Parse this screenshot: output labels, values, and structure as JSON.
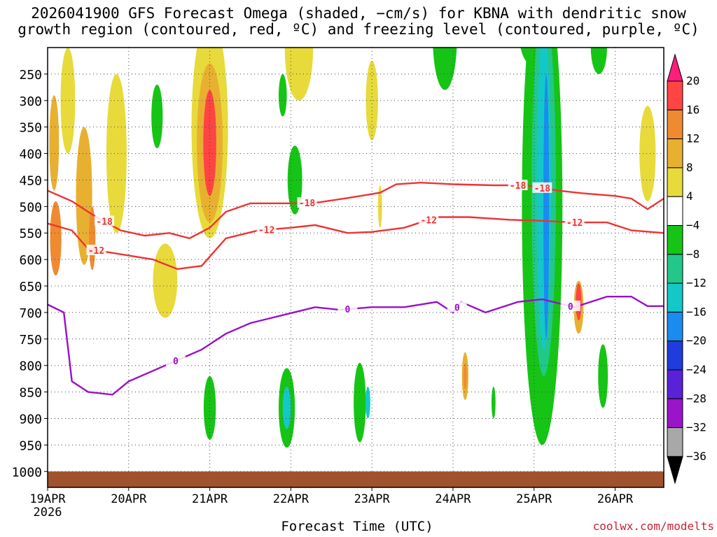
{
  "title_line1": "2026041900 GFS Forecast Omega (shaded, −cm/s) for KBNA with dendritic snow",
  "title_line2": "growth region (contoured, red, ºC) and freezing level (contoured, purple, ºC)",
  "xlabel": "Forecast Time (UTC)",
  "credit": "coolwx.com/modelts",
  "chart_data": {
    "type": "heatmap",
    "x_ticks": [
      "19APR",
      "20APR",
      "21APR",
      "22APR",
      "23APR",
      "24APR",
      "25APR",
      "26APR"
    ],
    "x_year_label": "2026",
    "x_range_days": [
      0,
      7.6
    ],
    "y_ticks": [
      250,
      300,
      350,
      400,
      450,
      500,
      550,
      600,
      650,
      700,
      750,
      800,
      850,
      900,
      950,
      1000
    ],
    "y_range_hpa": [
      200,
      1030
    ],
    "grid": true,
    "ground_level_hpa": 1000,
    "ground_color": "#a0522d",
    "colorbar": {
      "labels": [
        "20",
        "16",
        "12",
        "8",
        "4",
        "−4",
        "−8",
        "−12",
        "−16",
        "−20",
        "−24",
        "−28",
        "−32",
        "−36"
      ],
      "colors": [
        "#ff1f7a",
        "#ff4444",
        "#f08a30",
        "#e8b030",
        "#e8da3a",
        "#ffffff",
        "#16c416",
        "#22c88a",
        "#14c8c8",
        "#1a8cf0",
        "#1f3cdc",
        "#5a22d8",
        "#9a14c8",
        "#a8a8a8",
        "#000000"
      ]
    },
    "omega_cells": [
      {
        "day": 0.08,
        "p": 380,
        "w": 0.12,
        "h": 180,
        "v": 8
      },
      {
        "day": 0.1,
        "p": 560,
        "w": 0.14,
        "h": 140,
        "v": 12
      },
      {
        "day": 0.25,
        "p": 300,
        "w": 0.18,
        "h": 200,
        "v": 4
      },
      {
        "day": 0.45,
        "p": 480,
        "w": 0.2,
        "h": 260,
        "v": 8
      },
      {
        "day": 0.55,
        "p": 560,
        "w": 0.08,
        "h": 120,
        "v": 12
      },
      {
        "day": 0.85,
        "p": 400,
        "w": 0.25,
        "h": 300,
        "v": 4
      },
      {
        "day": 1.35,
        "p": 330,
        "w": 0.14,
        "h": 120,
        "v": -8
      },
      {
        "day": 1.45,
        "p": 640,
        "w": 0.3,
        "h": 140,
        "v": 4
      },
      {
        "day": 2.0,
        "p": 350,
        "w": 0.45,
        "h": 420,
        "v": 4
      },
      {
        "day": 2.0,
        "p": 380,
        "w": 0.32,
        "h": 300,
        "v": 8
      },
      {
        "day": 2.0,
        "p": 380,
        "w": 0.16,
        "h": 200,
        "v": 16
      },
      {
        "day": 2.0,
        "p": 880,
        "w": 0.15,
        "h": 120,
        "v": -8
      },
      {
        "day": 2.9,
        "p": 290,
        "w": 0.1,
        "h": 80,
        "v": -8
      },
      {
        "day": 3.05,
        "p": 450,
        "w": 0.18,
        "h": 130,
        "v": -8
      },
      {
        "day": 2.95,
        "p": 880,
        "w": 0.2,
        "h": 150,
        "v": -8
      },
      {
        "day": 2.95,
        "p": 880,
        "w": 0.1,
        "h": 80,
        "v": -16
      },
      {
        "day": 3.1,
        "p": 200,
        "w": 0.35,
        "h": 200,
        "v": 4
      },
      {
        "day": 4.0,
        "p": 300,
        "w": 0.15,
        "h": 150,
        "v": 4
      },
      {
        "day": 3.85,
        "p": 870,
        "w": 0.15,
        "h": 150,
        "v": -8
      },
      {
        "day": 3.95,
        "p": 870,
        "w": 0.06,
        "h": 60,
        "v": -16
      },
      {
        "day": 4.1,
        "p": 500,
        "w": 0.05,
        "h": 80,
        "v": 4
      },
      {
        "day": 5.15,
        "p": 820,
        "w": 0.08,
        "h": 90,
        "v": 8
      },
      {
        "day": 5.15,
        "p": 820,
        "w": 0.04,
        "h": 50,
        "v": 12
      },
      {
        "day": 4.9,
        "p": 180,
        "w": 0.3,
        "h": 200,
        "v": -8
      },
      {
        "day": 5.5,
        "p": 870,
        "w": 0.05,
        "h": 60,
        "v": -8
      },
      {
        "day": 5.95,
        "p": 150,
        "w": 0.3,
        "h": 160,
        "v": -8
      },
      {
        "day": 6.1,
        "p": 500,
        "w": 0.5,
        "h": 900,
        "v": -8
      },
      {
        "day": 6.12,
        "p": 470,
        "w": 0.3,
        "h": 700,
        "v": -12
      },
      {
        "day": 6.12,
        "p": 470,
        "w": 0.18,
        "h": 600,
        "v": -16
      },
      {
        "day": 6.15,
        "p": 500,
        "w": 0.07,
        "h": 500,
        "v": -20
      },
      {
        "day": 6.55,
        "p": 690,
        "w": 0.12,
        "h": 100,
        "v": 8
      },
      {
        "day": 6.55,
        "p": 680,
        "w": 0.07,
        "h": 70,
        "v": 16
      },
      {
        "day": 6.8,
        "p": 200,
        "w": 0.2,
        "h": 100,
        "v": -8
      },
      {
        "day": 6.85,
        "p": 820,
        "w": 0.12,
        "h": 120,
        "v": -8
      },
      {
        "day": 7.4,
        "p": 400,
        "w": 0.2,
        "h": 180,
        "v": 4
      }
    ],
    "contours": [
      {
        "name": "-18",
        "color": "#ee3333",
        "label": "-18",
        "points": [
          [
            0,
            470
          ],
          [
            0.3,
            490
          ],
          [
            0.55,
            515
          ],
          [
            0.9,
            545
          ],
          [
            1.2,
            555
          ],
          [
            1.5,
            550
          ],
          [
            1.75,
            560
          ],
          [
            2.0,
            540
          ],
          [
            2.2,
            510
          ],
          [
            2.5,
            494
          ],
          [
            3.0,
            494
          ],
          [
            3.35,
            492
          ],
          [
            3.7,
            484
          ],
          [
            4.1,
            474
          ],
          [
            4.3,
            458
          ],
          [
            4.6,
            455
          ],
          [
            5.0,
            458
          ],
          [
            5.5,
            460
          ],
          [
            5.9,
            460
          ],
          [
            6.3,
            470
          ],
          [
            6.6,
            475
          ],
          [
            7.0,
            480
          ],
          [
            7.2,
            485
          ],
          [
            7.4,
            505
          ],
          [
            7.6,
            485
          ]
        ],
        "label_day": [
          3.2,
          0.7,
          5.8,
          6.1
        ]
      },
      {
        "name": "-12",
        "color": "#ee3333",
        "label": "-12",
        "points": [
          [
            0,
            532
          ],
          [
            0.3,
            545
          ],
          [
            0.5,
            580
          ],
          [
            0.9,
            590
          ],
          [
            1.3,
            600
          ],
          [
            1.6,
            618
          ],
          [
            1.9,
            612
          ],
          [
            2.2,
            560
          ],
          [
            2.6,
            545
          ],
          [
            3.0,
            540
          ],
          [
            3.3,
            535
          ],
          [
            3.7,
            550
          ],
          [
            4.0,
            548
          ],
          [
            4.4,
            540
          ],
          [
            4.8,
            520
          ],
          [
            5.2,
            520
          ],
          [
            5.7,
            525
          ],
          [
            6.1,
            527
          ],
          [
            6.5,
            530
          ],
          [
            6.9,
            530
          ],
          [
            7.2,
            545
          ],
          [
            7.6,
            550
          ]
        ],
        "label_day": [
          0.6,
          2.7,
          4.7,
          6.5
        ]
      },
      {
        "name": "0",
        "color": "#9a10c8",
        "label": "0",
        "points": [
          [
            0,
            685
          ],
          [
            0.2,
            700
          ],
          [
            0.3,
            830
          ],
          [
            0.5,
            850
          ],
          [
            0.8,
            855
          ],
          [
            1.0,
            830
          ],
          [
            1.3,
            810
          ],
          [
            1.6,
            790
          ],
          [
            1.9,
            770
          ],
          [
            2.2,
            740
          ],
          [
            2.5,
            720
          ],
          [
            2.9,
            705
          ],
          [
            3.3,
            690
          ],
          [
            3.6,
            695
          ],
          [
            4.0,
            690
          ],
          [
            4.4,
            690
          ],
          [
            4.8,
            680
          ],
          [
            5.0,
            700
          ],
          [
            5.1,
            680
          ],
          [
            5.4,
            700
          ],
          [
            5.8,
            680
          ],
          [
            6.1,
            675
          ],
          [
            6.5,
            690
          ],
          [
            6.9,
            670
          ],
          [
            7.2,
            670
          ],
          [
            7.4,
            688
          ],
          [
            7.6,
            688
          ]
        ],
        "label_day": [
          1.58,
          3.7,
          5.05,
          6.45
        ]
      }
    ]
  }
}
